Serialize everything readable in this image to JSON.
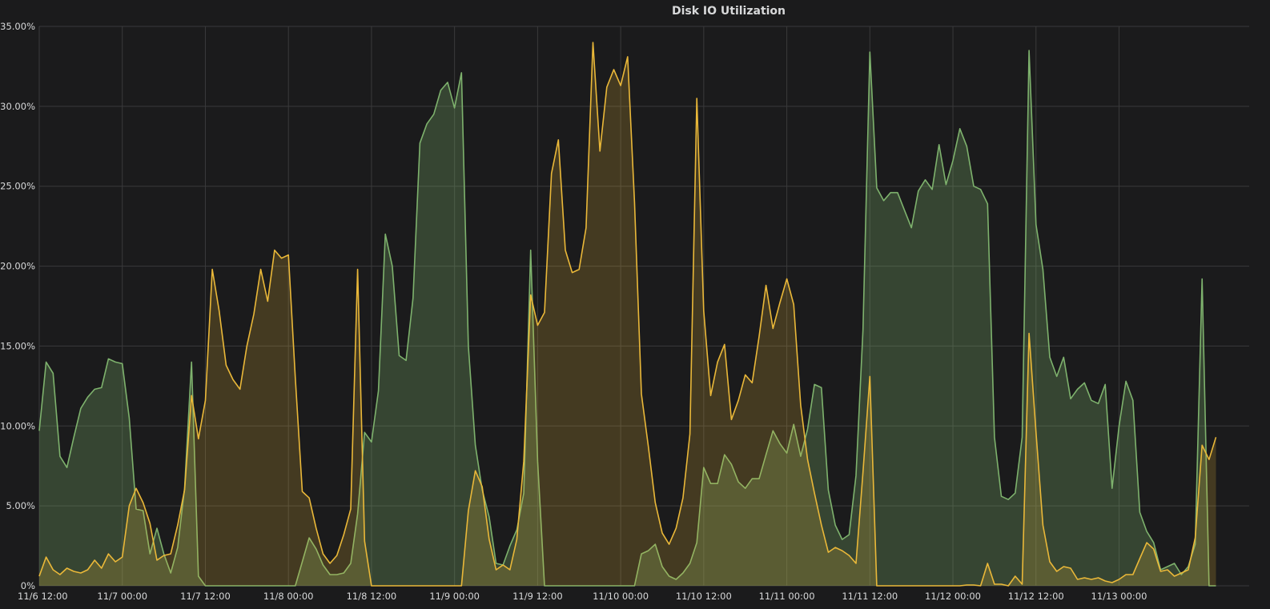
{
  "chart_data": {
    "type": "area",
    "title": "Disk IO Utilization",
    "xlabel": "",
    "ylabel": "",
    "ylim": [
      0,
      35
    ],
    "yticks": [
      0,
      5,
      10,
      15,
      20,
      25,
      30,
      35
    ],
    "ytick_labels": [
      "0%",
      "5.00%",
      "10.00%",
      "15.00%",
      "20.00%",
      "25.00%",
      "30.00%",
      "35.00%"
    ],
    "xlim_hours": [
      0,
      174.8
    ],
    "xticks_hours": [
      0,
      12,
      24,
      36,
      48,
      60,
      72,
      84,
      96,
      108,
      120,
      132,
      144,
      156
    ],
    "xtick_labels": [
      "11/6 12:00",
      "11/7 00:00",
      "11/7 12:00",
      "11/8 00:00",
      "11/8 12:00",
      "11/9 00:00",
      "11/9 12:00",
      "11/10 00:00",
      "11/10 12:00",
      "11/11 00:00",
      "11/11 12:00",
      "11/12 00:00",
      "11/12 12:00",
      "11/13 00:00"
    ],
    "grid": true,
    "legend": "none",
    "sample_interval_hours": 1,
    "series": [
      {
        "color": "#7eb26d",
        "fill": "rgba(126,178,109,0.28)",
        "values": [
          9.7,
          14.0,
          13.3,
          8.1,
          7.4,
          9.3,
          11.1,
          11.8,
          12.3,
          12.4,
          14.2,
          14.0,
          13.9,
          10.5,
          4.8,
          4.7,
          2.0,
          3.6,
          2.0,
          0.8,
          2.4,
          6.1,
          14.0,
          0.6,
          0,
          0,
          0,
          0,
          0,
          0,
          0,
          0,
          0,
          0,
          0,
          0,
          0,
          0,
          1.5,
          3.0,
          2.3,
          1.3,
          0.7,
          0.7,
          0.8,
          1.4,
          4.5,
          9.6,
          9.0,
          12.2,
          22.0,
          20.0,
          14.4,
          14.1,
          18.0,
          27.7,
          28.9,
          29.5,
          31.0,
          31.5,
          29.9,
          32.1,
          15.0,
          8.8,
          6.0,
          4.3,
          1.4,
          1.3,
          2.5,
          3.5,
          5.8,
          21.0,
          7.8,
          0,
          0,
          0,
          0,
          0,
          0,
          0,
          0,
          0,
          0,
          0,
          0,
          0,
          0,
          2.0,
          2.2,
          2.6,
          1.2,
          0.6,
          0.4,
          0.8,
          1.4,
          2.7,
          7.4,
          6.4,
          6.4,
          8.2,
          7.6,
          6.5,
          6.1,
          6.7,
          6.7,
          8.2,
          9.7,
          8.9,
          8.3,
          10.1,
          8.1,
          9.8,
          12.6,
          12.4,
          6.0,
          3.8,
          2.9,
          3.2,
          6.9,
          16.0,
          33.4,
          24.9,
          24.1,
          24.6,
          24.6,
          23.5,
          22.4,
          24.7,
          25.4,
          24.8,
          27.6,
          25.1,
          26.6,
          28.6,
          27.5,
          25.0,
          24.8,
          23.9,
          9.3,
          5.6,
          5.4,
          5.8,
          9.3,
          33.5,
          22.6,
          19.8,
          14.3,
          13.1,
          14.3,
          11.7,
          12.3,
          12.7,
          11.6,
          11.4,
          12.6,
          6.1,
          10.0,
          12.8,
          11.6,
          4.6,
          3.4,
          2.7,
          1.0,
          1.2,
          1.4,
          0.7,
          1.2,
          2.6,
          19.2,
          0,
          0
        ]
      },
      {
        "color": "#eab839",
        "fill": "rgba(234,184,57,0.20)",
        "values": [
          0.6,
          1.8,
          1.0,
          0.7,
          1.1,
          0.9,
          0.8,
          1.0,
          1.6,
          1.1,
          2.0,
          1.5,
          1.8,
          5.0,
          6.1,
          5.2,
          3.9,
          1.6,
          1.9,
          2.0,
          3.8,
          6.0,
          11.9,
          9.2,
          11.6,
          19.8,
          17.2,
          13.8,
          12.9,
          12.3,
          15.0,
          17.0,
          19.8,
          17.8,
          21.0,
          20.5,
          20.7,
          13.0,
          5.9,
          5.5,
          3.6,
          2.0,
          1.4,
          1.9,
          3.2,
          4.8,
          19.8,
          2.8,
          0,
          0,
          0,
          0,
          0,
          0,
          0,
          0,
          0,
          0,
          0,
          0,
          0,
          0,
          4.7,
          7.2,
          6.2,
          2.9,
          1.0,
          1.3,
          1.0,
          2.9,
          7.8,
          18.2,
          16.3,
          17.1,
          25.8,
          27.9,
          21.0,
          19.6,
          19.8,
          22.4,
          34.0,
          27.2,
          31.2,
          32.3,
          31.3,
          33.1,
          24.0,
          12.0,
          8.7,
          5.2,
          3.3,
          2.6,
          3.6,
          5.5,
          9.5,
          30.5,
          17.2,
          11.9,
          14.0,
          15.1,
          10.4,
          11.6,
          13.2,
          12.7,
          15.6,
          18.8,
          16.1,
          17.7,
          19.2,
          17.6,
          11.3,
          7.9,
          5.8,
          3.8,
          2.1,
          2.4,
          2.2,
          1.9,
          1.4,
          7.1,
          13.1,
          0,
          0,
          0,
          0,
          0,
          0,
          0,
          0,
          0,
          0,
          0,
          0,
          0,
          0.05,
          0.05,
          0,
          1.4,
          0.1,
          0.1,
          0,
          0.6,
          0.1,
          15.8,
          9.6,
          3.8,
          1.5,
          0.9,
          1.2,
          1.1,
          0.4,
          0.5,
          0.4,
          0.5,
          0.3,
          0.2,
          0.4,
          0.7,
          0.7,
          1.7,
          2.7,
          2.3,
          0.9,
          1.0,
          0.6,
          0.8,
          1.0,
          3.0,
          8.8,
          7.9,
          9.3
        ]
      }
    ]
  }
}
